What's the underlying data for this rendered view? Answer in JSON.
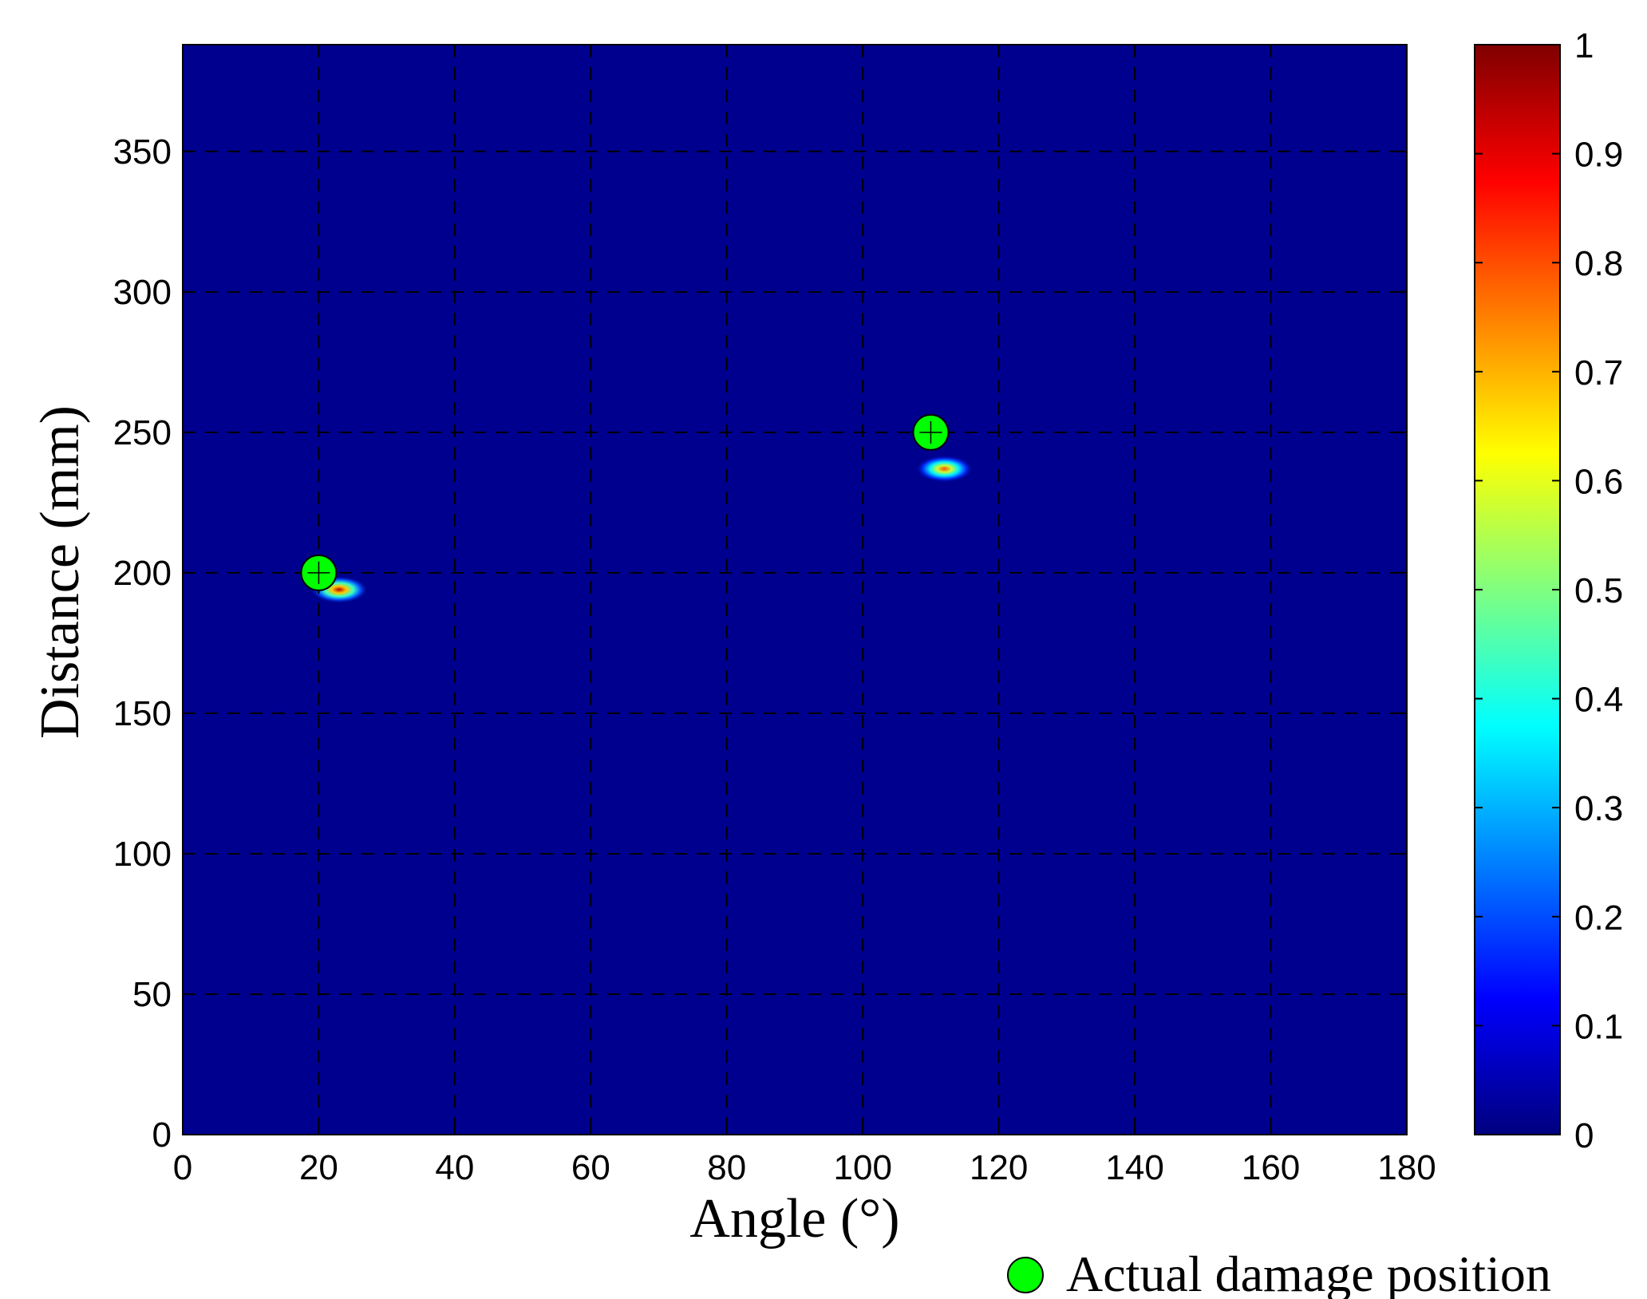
{
  "chart_data": {
    "type": "heatmap",
    "xlabel": "Angle (°)",
    "ylabel": "Distance (mm)",
    "xlim": [
      0,
      180
    ],
    "ylim": [
      0,
      388
    ],
    "xticks": [
      "0",
      "20",
      "40",
      "60",
      "80",
      "100",
      "120",
      "140",
      "160",
      "180"
    ],
    "yticks": [
      "0",
      "50",
      "100",
      "150",
      "200",
      "250",
      "300",
      "350"
    ],
    "grid": true,
    "grid_style": "dashed",
    "colormap": "jet",
    "background_color": "#00008f",
    "colorbar": {
      "range": [
        0,
        1
      ],
      "ticks": [
        "0",
        "0.1",
        "0.2",
        "0.3",
        "0.4",
        "0.5",
        "0.6",
        "0.7",
        "0.8",
        "0.9",
        "1"
      ]
    },
    "hotspots": [
      {
        "x": 23,
        "y": 194,
        "peak": 0.95
      },
      {
        "x": 112,
        "y": 237,
        "peak": 0.8
      }
    ],
    "markers": {
      "name": "Actual damage position",
      "color": "#00ff00",
      "points": [
        {
          "x": 20,
          "y": 200
        },
        {
          "x": 110,
          "y": 250
        }
      ]
    },
    "legend": {
      "label": "Actual damage position",
      "placement": "bottom-right"
    }
  }
}
